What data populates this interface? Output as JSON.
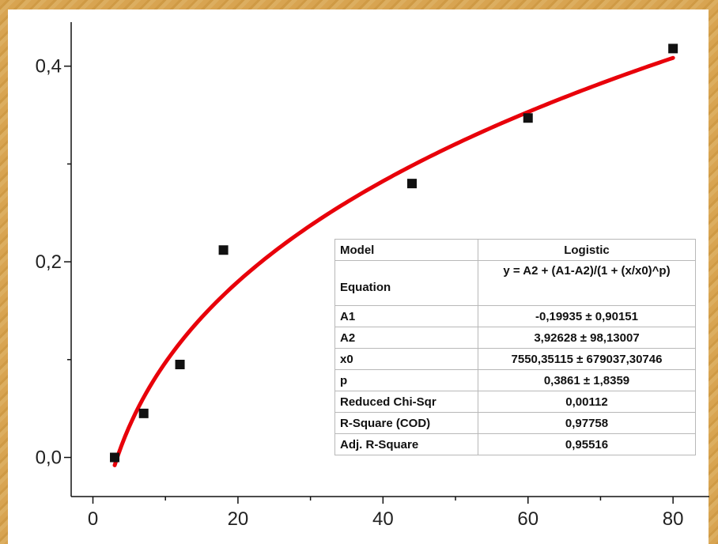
{
  "chart_data": {
    "type": "scatter",
    "x": [
      3,
      7,
      12,
      18,
      44,
      60,
      80
    ],
    "y": [
      0.0,
      0.045,
      0.095,
      0.212,
      0.28,
      0.347,
      0.418
    ],
    "xlim": [
      -3,
      85
    ],
    "ylim": [
      -0.04,
      0.445
    ],
    "xticks": [
      0,
      20,
      40,
      60,
      80
    ],
    "xtick_labels": [
      "0",
      "20",
      "40",
      "60",
      "80"
    ],
    "yticks": [
      0.0,
      0.2,
      0.4
    ],
    "ytick_labels": [
      "0,0",
      "0,2",
      "0,4"
    ],
    "marker_color": "#111111",
    "fit": {
      "model": "Logistic",
      "A1": -0.19935,
      "A2": 3.92628,
      "x0": 7550.35115,
      "p": 0.3861,
      "x_range": [
        3,
        80
      ],
      "color": "#e8000a"
    },
    "fit_table": [
      {
        "key": "Model",
        "value": "Logistic"
      },
      {
        "key": "Equation",
        "value": "y = A2 + (A1-A2)/(1 + (x/x0)^p)"
      },
      {
        "key": "A1",
        "value": "-0,19935 ± 0,90151"
      },
      {
        "key": "A2",
        "value": "3,92628 ± 98,13007"
      },
      {
        "key": "x0",
        "value": "7550,35115 ± 679037,30746"
      },
      {
        "key": "p",
        "value": "0,3861 ± 1,8359"
      },
      {
        "key": "Reduced Chi-Sqr",
        "value": "0,00112"
      },
      {
        "key": "R-Square (COD)",
        "value": "0,97758"
      },
      {
        "key": "Adj. R-Square",
        "value": "0,95516"
      }
    ]
  }
}
